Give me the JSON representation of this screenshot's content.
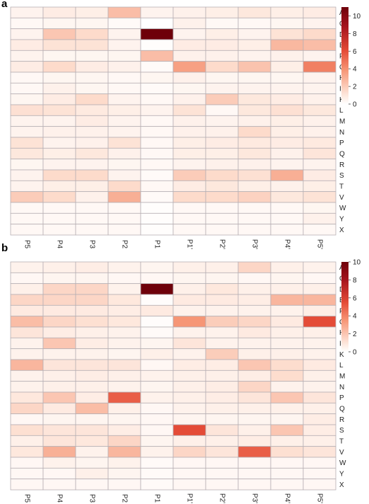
{
  "chart_data": [
    {
      "type": "heatmap",
      "panel_label": "a",
      "columns": [
        "P5",
        "P4",
        "P3",
        "P2",
        "P1",
        "P1'",
        "P2'",
        "P3'",
        "P4'",
        "P5'"
      ],
      "rows": [
        "A",
        "C",
        "D",
        "E",
        "F",
        "G",
        "H",
        "I",
        "K",
        "L",
        "M",
        "N",
        "P",
        "Q",
        "R",
        "S",
        "T",
        "V",
        "W",
        "Y",
        "X"
      ],
      "colorbar": {
        "min": 0,
        "max": 11,
        "ticks": [
          0,
          2,
          4,
          6,
          8,
          10
        ]
      },
      "grid": true,
      "values": [
        [
          0.5,
          0.8,
          0.7,
          2.5,
          0.5,
          0.6,
          0.7,
          1.0,
          0.7,
          0.8
        ],
        [
          0.3,
          0.4,
          0.4,
          0.2,
          0.0,
          0.6,
          0.3,
          0.3,
          0.4,
          0.5
        ],
        [
          0.5,
          2.2,
          1.5,
          0.5,
          11.0,
          0.5,
          0.7,
          0.5,
          1.2,
          1.5
        ],
        [
          0.8,
          1.2,
          1.2,
          0.5,
          0.1,
          0.8,
          0.8,
          0.7,
          2.7,
          2.5
        ],
        [
          0.5,
          0.4,
          0.4,
          0.4,
          2.5,
          0.6,
          0.6,
          0.5,
          0.6,
          0.5
        ],
        [
          0.8,
          1.5,
          0.8,
          0.6,
          0.2,
          3.5,
          1.5,
          2.3,
          0.7,
          4.5
        ],
        [
          0.3,
          0.4,
          0.4,
          0.3,
          0.4,
          0.6,
          0.4,
          0.4,
          0.4,
          0.5
        ],
        [
          0.3,
          0.6,
          0.4,
          0.3,
          0.2,
          0.4,
          0.5,
          0.5,
          0.5,
          0.5
        ],
        [
          0.4,
          0.8,
          1.5,
          0.5,
          0.3,
          0.6,
          2.0,
          1.0,
          0.8,
          0.6
        ],
        [
          1.3,
          1.2,
          0.9,
          0.7,
          0.5,
          1.2,
          0.3,
          1.0,
          1.3,
          1.0
        ],
        [
          0.5,
          0.5,
          0.8,
          0.5,
          0.3,
          0.6,
          0.5,
          0.6,
          0.7,
          0.6
        ],
        [
          0.5,
          0.6,
          0.6,
          0.5,
          0.3,
          0.6,
          0.6,
          1.5,
          0.7,
          0.6
        ],
        [
          1.2,
          0.5,
          0.6,
          1.2,
          0.3,
          0.7,
          0.8,
          0.9,
          0.8,
          0.9
        ],
        [
          1.0,
          0.7,
          1.0,
          0.6,
          0.3,
          0.7,
          0.7,
          1.0,
          0.6,
          1.1
        ],
        [
          0.4,
          0.5,
          0.5,
          0.4,
          0.3,
          0.5,
          0.6,
          0.6,
          0.5,
          0.5
        ],
        [
          0.5,
          1.5,
          1.5,
          0.5,
          0.2,
          2.0,
          1.5,
          1.3,
          3.0,
          0.8
        ],
        [
          0.5,
          0.7,
          0.7,
          1.5,
          0.3,
          0.8,
          1.0,
          0.7,
          0.6,
          0.7
        ],
        [
          2.0,
          1.5,
          0.6,
          3.0,
          0.2,
          1.5,
          1.5,
          1.8,
          1.0,
          1.2
        ],
        [
          0.3,
          0.3,
          0.3,
          0.3,
          0.1,
          0.3,
          0.3,
          0.3,
          0.3,
          0.4
        ],
        [
          0.3,
          0.3,
          0.3,
          0.3,
          0.1,
          0.3,
          0.3,
          0.3,
          0.3,
          0.6
        ],
        [
          0.3,
          0.3,
          0.3,
          0.3,
          0.1,
          0.3,
          0.3,
          0.3,
          0.3,
          0.3
        ]
      ]
    },
    {
      "type": "heatmap",
      "panel_label": "b",
      "columns": [
        "P5",
        "P4",
        "P3",
        "P2",
        "P1",
        "P1'",
        "P2'",
        "P3'",
        "P4'",
        "P5'"
      ],
      "rows": [
        "A",
        "C",
        "D",
        "E",
        "F",
        "G",
        "H",
        "I",
        "K",
        "L",
        "M",
        "N",
        "P",
        "Q",
        "R",
        "S",
        "T",
        "V",
        "W",
        "Y",
        "X"
      ],
      "colorbar": {
        "min": 0,
        "max": 10,
        "ticks": [
          0,
          2,
          4,
          6,
          8,
          10
        ]
      },
      "grid": true,
      "values": [
        [
          0.5,
          0.6,
          0.7,
          0.5,
          0.4,
          0.6,
          0.6,
          1.5,
          0.6,
          0.5
        ],
        [
          0.3,
          0.4,
          0.4,
          0.3,
          0.3,
          0.4,
          0.4,
          0.3,
          0.4,
          0.3
        ],
        [
          0.6,
          1.5,
          1.5,
          0.5,
          10.0,
          0.6,
          0.9,
          0.6,
          0.6,
          0.6
        ],
        [
          1.5,
          1.5,
          1.5,
          0.9,
          0.1,
          0.8,
          0.8,
          0.7,
          2.5,
          2.5
        ],
        [
          0.8,
          0.8,
          0.8,
          0.7,
          0.8,
          0.5,
          0.5,
          0.5,
          0.5,
          0.7
        ],
        [
          2.3,
          1.5,
          1.2,
          0.9,
          0.1,
          3.5,
          1.8,
          1.5,
          0.8,
          5.5
        ],
        [
          1.0,
          0.7,
          0.6,
          0.5,
          0.2,
          0.5,
          0.5,
          0.8,
          0.6,
          0.6
        ],
        [
          0.5,
          2.0,
          0.7,
          0.5,
          0.4,
          1.0,
          0.5,
          0.5,
          0.5,
          0.5
        ],
        [
          0.5,
          0.5,
          0.5,
          0.4,
          0.6,
          0.5,
          1.8,
          0.6,
          0.6,
          0.5
        ],
        [
          2.5,
          1.0,
          1.0,
          1.0,
          0.3,
          0.7,
          0.7,
          2.0,
          1.3,
          0.8
        ],
        [
          0.5,
          0.6,
          0.7,
          0.6,
          0.5,
          0.6,
          0.6,
          0.7,
          1.3,
          0.6
        ],
        [
          0.5,
          0.6,
          0.6,
          0.5,
          0.4,
          0.6,
          0.7,
          1.5,
          0.5,
          0.5
        ],
        [
          0.9,
          2.0,
          0.7,
          5.0,
          0.5,
          0.6,
          0.7,
          1.0,
          2.0,
          1.0
        ],
        [
          1.5,
          0.8,
          2.3,
          0.6,
          0.3,
          0.5,
          0.6,
          0.6,
          0.6,
          0.6
        ],
        [
          0.3,
          0.4,
          0.4,
          0.4,
          0.3,
          0.4,
          0.4,
          0.4,
          0.4,
          0.7
        ],
        [
          1.2,
          1.0,
          1.0,
          0.7,
          0.3,
          5.5,
          1.0,
          0.6,
          2.0,
          0.7
        ],
        [
          0.6,
          1.0,
          0.9,
          1.5,
          0.4,
          0.6,
          0.6,
          0.7,
          0.6,
          0.6
        ],
        [
          0.9,
          2.7,
          0.5,
          2.5,
          0.5,
          1.5,
          1.0,
          5.0,
          1.2,
          1.0
        ],
        [
          0.3,
          0.5,
          0.4,
          0.5,
          0.2,
          0.3,
          0.3,
          0.3,
          0.3,
          0.3
        ],
        [
          0.3,
          0.3,
          0.6,
          0.4,
          0.2,
          0.3,
          0.3,
          0.3,
          0.3,
          0.3
        ],
        [
          0.3,
          0.3,
          0.3,
          0.3,
          0.2,
          0.3,
          0.3,
          0.3,
          0.3,
          0.3
        ]
      ]
    }
  ]
}
